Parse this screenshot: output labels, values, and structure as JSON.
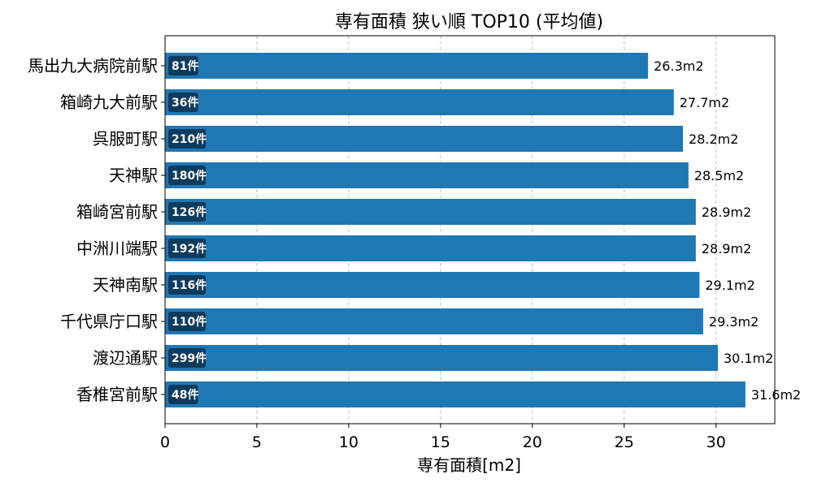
{
  "chart_data": {
    "type": "bar",
    "orientation": "horizontal",
    "title": "専有面積 狭い順 TOP10 (平均値)",
    "xlabel": "専有面積[m2]",
    "ylabel": "",
    "xlim": [
      0,
      33.2
    ],
    "xticks": [
      0,
      5,
      10,
      15,
      20,
      25,
      30
    ],
    "grid": "vertical dashed",
    "colors": {
      "bar": "#1f77b4",
      "badge": "#0d3b5e"
    },
    "categories": [
      "馬出九大病院前駅",
      "箱崎九大前駅",
      "呉服町駅",
      "天神駅",
      "箱崎宮前駅",
      "中洲川端駅",
      "天神南駅",
      "千代県庁口駅",
      "渡辺通駅",
      "香椎宮前駅"
    ],
    "values": [
      26.3,
      27.7,
      28.2,
      28.5,
      28.9,
      28.9,
      29.1,
      29.3,
      30.1,
      31.6
    ],
    "value_labels": [
      "26.3m2",
      "27.7m2",
      "28.2m2",
      "28.5m2",
      "28.9m2",
      "28.9m2",
      "29.1m2",
      "29.3m2",
      "30.1m2",
      "31.6m2"
    ],
    "count_labels": [
      "81件",
      "36件",
      "210件",
      "180件",
      "126件",
      "192件",
      "116件",
      "110件",
      "299件",
      "48件"
    ]
  }
}
